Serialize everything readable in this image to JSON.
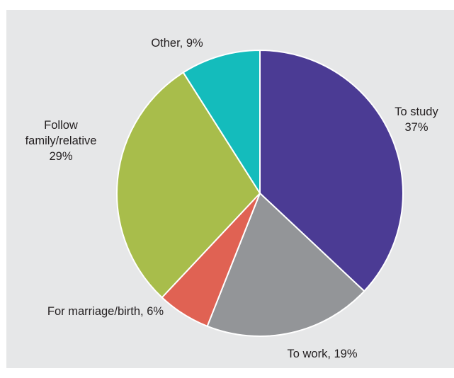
{
  "chart_data": {
    "type": "pie",
    "title": "",
    "series": [
      {
        "values": [
          37,
          19,
          6,
          29,
          9
        ],
        "categories": [
          "To study",
          "To work",
          "For marriage/birth",
          "Follow family/relative",
          "Other"
        ]
      }
    ],
    "slices": [
      {
        "label_lines": [
          "To study",
          "37%"
        ],
        "category": "To study",
        "value": 37,
        "color": "#4b3b94"
      },
      {
        "label_lines": [
          "To work, 19%"
        ],
        "category": "To work",
        "value": 19,
        "color": "#939598"
      },
      {
        "label_lines": [
          "For marriage/birth, 6%"
        ],
        "category": "For marriage/birth",
        "value": 6,
        "color": "#e06253"
      },
      {
        "label_lines": [
          "Follow",
          "family/relative",
          "29%"
        ],
        "category": "Follow family/relative",
        "value": 29,
        "color": "#a8bd4b"
      },
      {
        "label_lines": [
          "Other, 9%"
        ],
        "category": "Other",
        "value": 9,
        "color": "#14bcbc"
      }
    ],
    "start_angle_deg": 0,
    "direction": "clockwise",
    "slice_border_color": "#ffffff",
    "background_color": "#e6e7e8",
    "legend": "none"
  }
}
